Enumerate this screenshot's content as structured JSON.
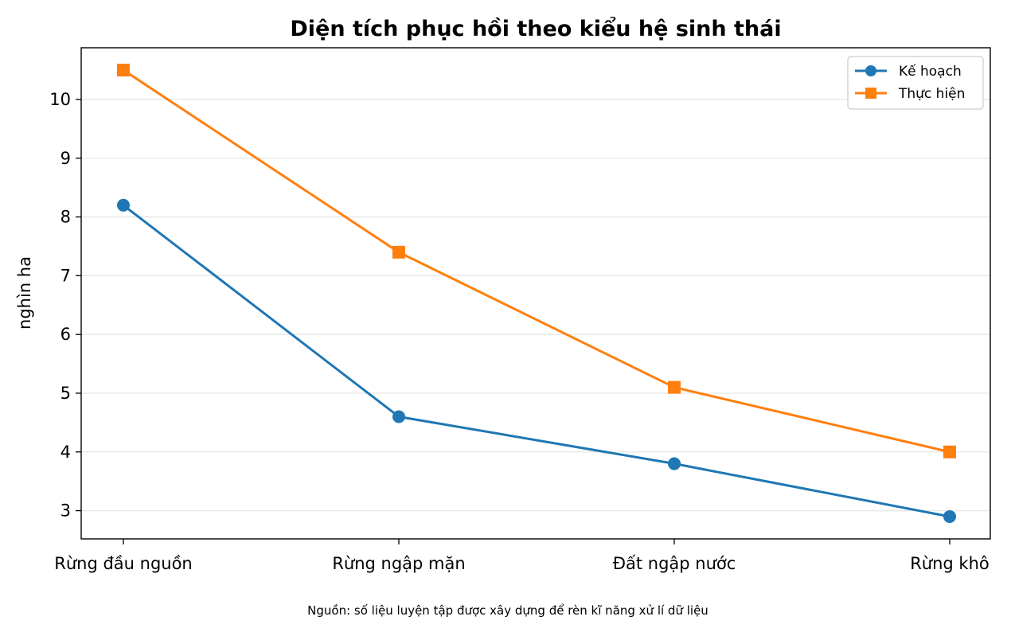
{
  "chart_data": {
    "type": "line",
    "title": "Diện tích phục hồi theo kiểu hệ sinh thái",
    "xlabel": "",
    "ylabel": "nghìn ha",
    "categories": [
      "Rừng đầu nguồn",
      "Rừng ngập mặn",
      "Đất ngập nước",
      "Rừng khô"
    ],
    "series": [
      {
        "name": "Kế hoạch",
        "values": [
          8.2,
          4.6,
          3.8,
          2.9
        ],
        "color": "#1f77b4",
        "marker": "circle"
      },
      {
        "name": "Thực hiện",
        "values": [
          10.5,
          7.4,
          5.1,
          4.0
        ],
        "color": "#ff7f0e",
        "marker": "square"
      }
    ],
    "ylim": [
      2.52,
      10.88
    ],
    "yticks": [
      3,
      4,
      5,
      6,
      7,
      8,
      9,
      10
    ],
    "grid": "horizontal",
    "legend_position": "top-right"
  },
  "source_note": "Nguồn: số liệu luyện tập được xây dựng để rèn kĩ năng xử lí dữ liệu"
}
